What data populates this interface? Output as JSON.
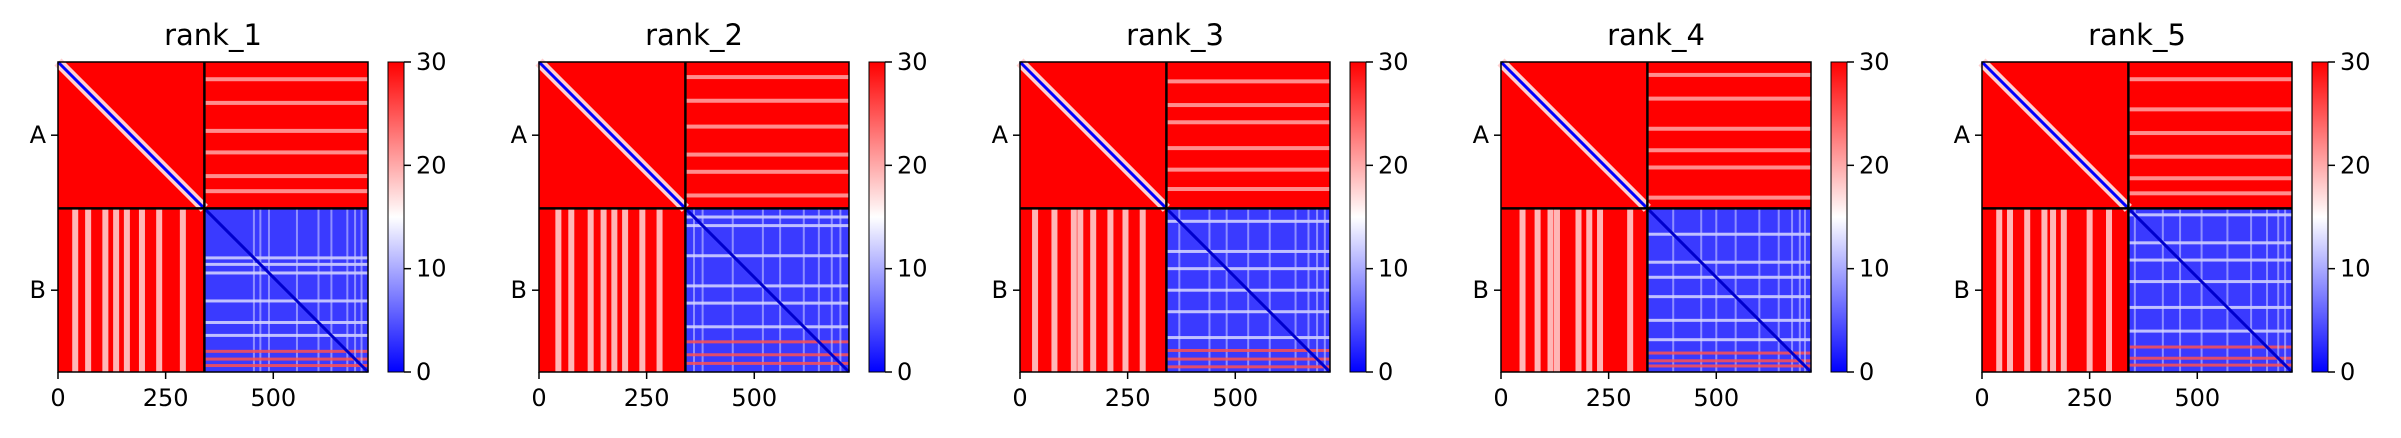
{
  "chart_data": [
    {
      "type": "heatmap",
      "title": "rank_1",
      "x_ticks": [
        0,
        250,
        500
      ],
      "x_range": [
        0,
        720
      ],
      "y_block_labels": [
        "A",
        "B"
      ],
      "chain_boundary": 340,
      "colorbar": {
        "min": 0,
        "max": 30,
        "ticks": [
          0,
          10,
          20,
          30
        ],
        "colors": [
          "#0000ff",
          "#ffffff",
          "#ff0000"
        ]
      },
      "stripes": {
        "ba_columns": [
          40,
          70,
          110,
          135,
          160,
          195,
          235,
          290
        ],
        "bb_rows": [
          455,
          470,
          490,
          555,
          605,
          635,
          672,
          690,
          705
        ],
        "ab_rows": [
          40,
          95,
          160,
          210,
          265,
          300
        ]
      }
    },
    {
      "type": "heatmap",
      "title": "rank_2",
      "x_ticks": [
        0,
        250,
        500
      ],
      "x_range": [
        0,
        720
      ],
      "y_block_labels": [
        "A",
        "B"
      ],
      "chain_boundary": 340,
      "colorbar": {
        "min": 0,
        "max": 30,
        "ticks": [
          0,
          10,
          20,
          30
        ],
        "colors": [
          "#0000ff",
          "#ffffff",
          "#ff0000"
        ]
      },
      "stripes": {
        "ba_columns": [
          45,
          75,
          120,
          150,
          175,
          200,
          240,
          280
        ],
        "bb_rows": [
          360,
          380,
          450,
          520,
          560,
          615,
          650,
          680,
          700
        ],
        "ab_rows": [
          35,
          90,
          150,
          215,
          255,
          310
        ]
      }
    },
    {
      "type": "heatmap",
      "title": "rank_3",
      "x_ticks": [
        0,
        250,
        500
      ],
      "x_range": [
        0,
        720
      ],
      "y_block_labels": [
        "A",
        "B"
      ],
      "chain_boundary": 340,
      "colorbar": {
        "min": 0,
        "max": 30,
        "ticks": [
          0,
          10,
          20,
          30
        ],
        "colors": [
          "#0000ff",
          "#ffffff",
          "#ff0000"
        ]
      },
      "stripes": {
        "ba_columns": [
          35,
          80,
          125,
          140,
          170,
          210,
          245,
          285
        ],
        "bb_rows": [
          370,
          440,
          480,
          530,
          580,
          640,
          670,
          690,
          708
        ],
        "ab_rows": [
          45,
          100,
          140,
          200,
          250,
          295
        ]
      }
    },
    {
      "type": "heatmap",
      "title": "rank_4",
      "x_ticks": [
        0,
        250,
        500
      ],
      "x_range": [
        0,
        720
      ],
      "y_block_labels": [
        "A",
        "B"
      ],
      "chain_boundary": 340,
      "colorbar": {
        "min": 0,
        "max": 30,
        "ticks": [
          0,
          10,
          20,
          30
        ],
        "colors": [
          "#0000ff",
          "#ffffff",
          "#ff0000"
        ]
      },
      "stripes": {
        "ba_columns": [
          50,
          85,
          115,
          130,
          180,
          205,
          230,
          300
        ],
        "bb_rows": [
          400,
          465,
          500,
          545,
          600,
          645,
          676,
          694,
          706
        ],
        "ab_rows": [
          30,
          85,
          155,
          205,
          245,
          315
        ]
      }
    },
    {
      "type": "heatmap",
      "title": "rank_5",
      "x_ticks": [
        0,
        250,
        500
      ],
      "x_range": [
        0,
        720
      ],
      "y_block_labels": [
        "A",
        "B"
      ],
      "chain_boundary": 340,
      "colorbar": {
        "min": 0,
        "max": 30,
        "ticks": [
          0,
          10,
          20,
          30
        ],
        "colors": [
          "#0000ff",
          "#ffffff",
          "#ff0000"
        ]
      },
      "stripes": {
        "ba_columns": [
          40,
          65,
          105,
          145,
          165,
          190,
          250,
          295
        ],
        "bb_rows": [
          355,
          420,
          460,
          510,
          570,
          625,
          662,
          688,
          704
        ],
        "ab_rows": [
          40,
          110,
          165,
          220,
          270,
          305
        ]
      }
    }
  ]
}
